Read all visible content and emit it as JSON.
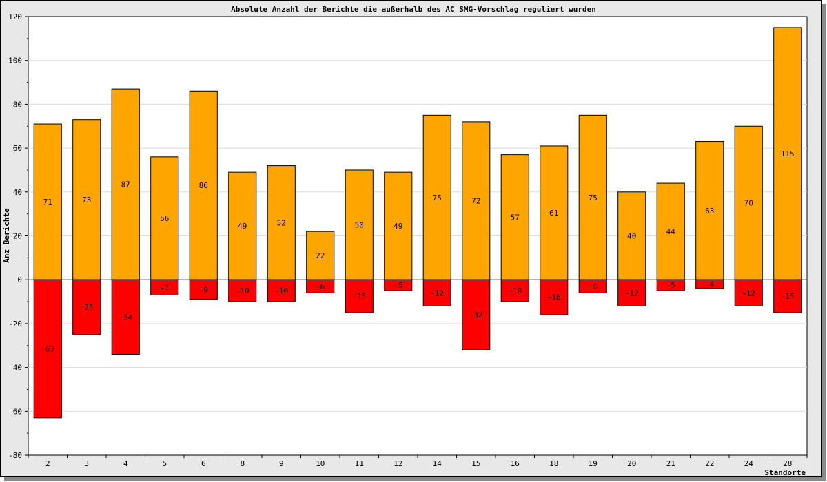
{
  "chart_data": {
    "type": "bar",
    "stacked": true,
    "title": "Absolute Anzahl der Berichte die außerhalb des AC SMG-Vorschlag reguliert wurden",
    "xlabel": "Standorte",
    "ylabel": "Anz Berichte",
    "ylim": [
      -80,
      120
    ],
    "yticks": [
      -80,
      -60,
      -40,
      -20,
      0,
      20,
      40,
      60,
      80,
      100,
      120
    ],
    "grid": true,
    "categories": [
      "2",
      "3",
      "4",
      "5",
      "6",
      "8",
      "9",
      "10",
      "11",
      "12",
      "14",
      "15",
      "16",
      "18",
      "19",
      "20",
      "21",
      "22",
      "24",
      "28"
    ],
    "series": [
      {
        "color": "#ffa500",
        "values": [
          71,
          73,
          87,
          56,
          86,
          49,
          52,
          22,
          50,
          49,
          75,
          72,
          57,
          61,
          75,
          40,
          44,
          63,
          70,
          115
        ]
      },
      {
        "color": "#ff0000",
        "values": [
          -63,
          -25,
          -34,
          -7,
          -9,
          -10,
          -10,
          -6,
          -15,
          -5,
          -12,
          -32,
          -10,
          -16,
          -6,
          -12,
          -5,
          -4,
          -12,
          -15
        ]
      }
    ]
  }
}
